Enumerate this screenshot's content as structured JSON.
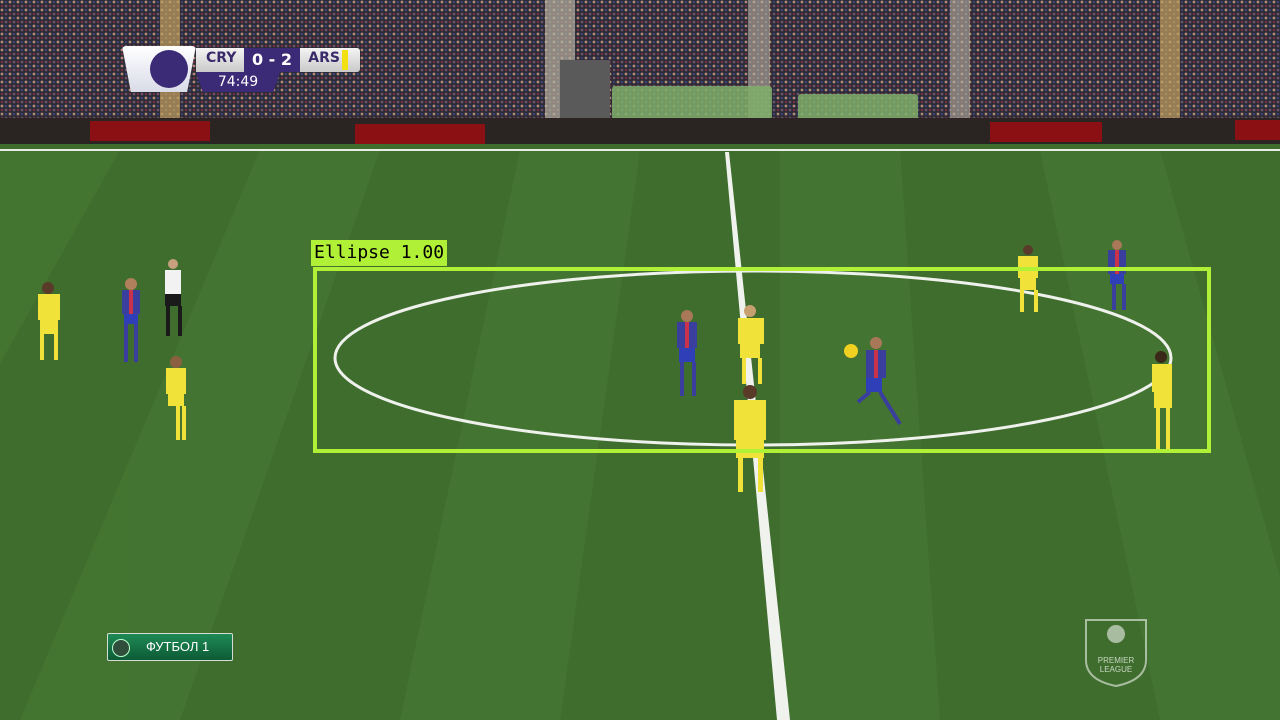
{
  "scorebug": {
    "home_team": "CRY",
    "score": "0 - 2",
    "away_team": "ARS",
    "clock": "74:49"
  },
  "detection": {
    "label": "Ellipse 1.00"
  },
  "channel": {
    "name": "ФУТБОЛ 1"
  },
  "league_logo": {
    "line1": "PREMIER",
    "line2": "LEAGUE"
  },
  "colors": {
    "home_kit": "#3a3f9e",
    "home_stripe": "#c8324a",
    "away_kit": "#f0e238",
    "detection_box": "#b0f036",
    "pitch": "#3d6b2c"
  }
}
